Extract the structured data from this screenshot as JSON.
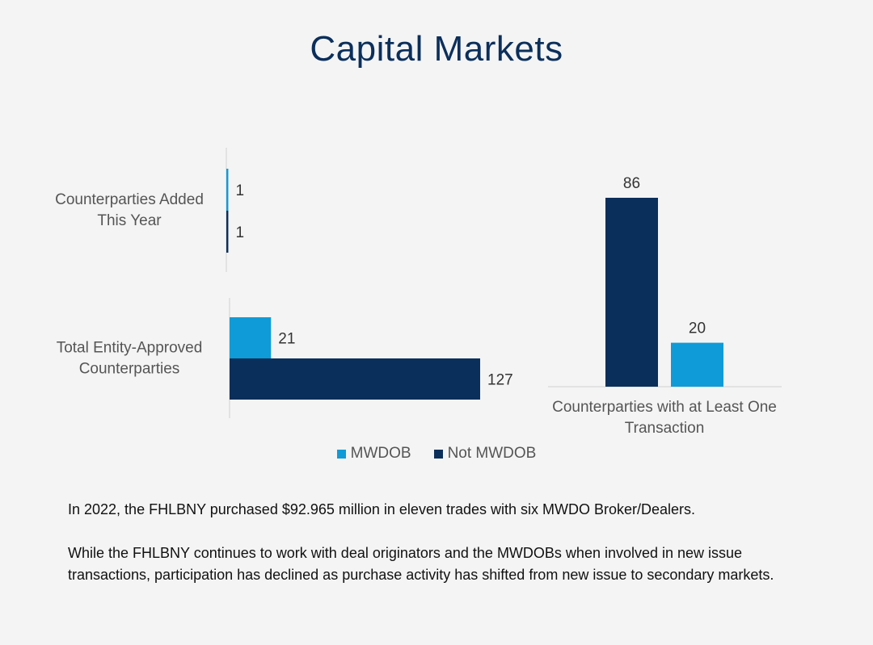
{
  "title": "Capital Markets",
  "colors": {
    "mwdob": "#0f9bd7",
    "not_mwdob": "#0b2f5b",
    "axis": "#cfcfcf",
    "label": "#555555"
  },
  "chart_data": [
    {
      "type": "bar",
      "orientation": "horizontal",
      "categories": [
        "Counterparties Added This Year",
        "Total Entity-Approved Counterparties"
      ],
      "series": [
        {
          "name": "MWDOB",
          "values": [
            1,
            21
          ]
        },
        {
          "name": "Not MWDOB",
          "values": [
            1,
            127
          ]
        }
      ],
      "data_labels": true
    },
    {
      "type": "bar",
      "orientation": "vertical",
      "categories": [
        "Counterparties with at Least One Transaction"
      ],
      "series": [
        {
          "name": "Not MWDOB",
          "values": [
            86
          ]
        },
        {
          "name": "MWDOB",
          "values": [
            20
          ]
        }
      ],
      "data_labels": true
    }
  ],
  "legend": {
    "placement": "bottom",
    "items": [
      {
        "label": "MWDOB"
      },
      {
        "label": "Not MWDOB"
      }
    ]
  },
  "notes": [
    "In 2022, the FHLBNY purchased $92.965 million in eleven trades with six MWDO Broker/Dealers.",
    "While the FHLBNY continues to work with deal originators and the MWDOBs when involved in new issue transactions, participation has declined as purchase activity has shifted from new issue to secondary markets."
  ]
}
